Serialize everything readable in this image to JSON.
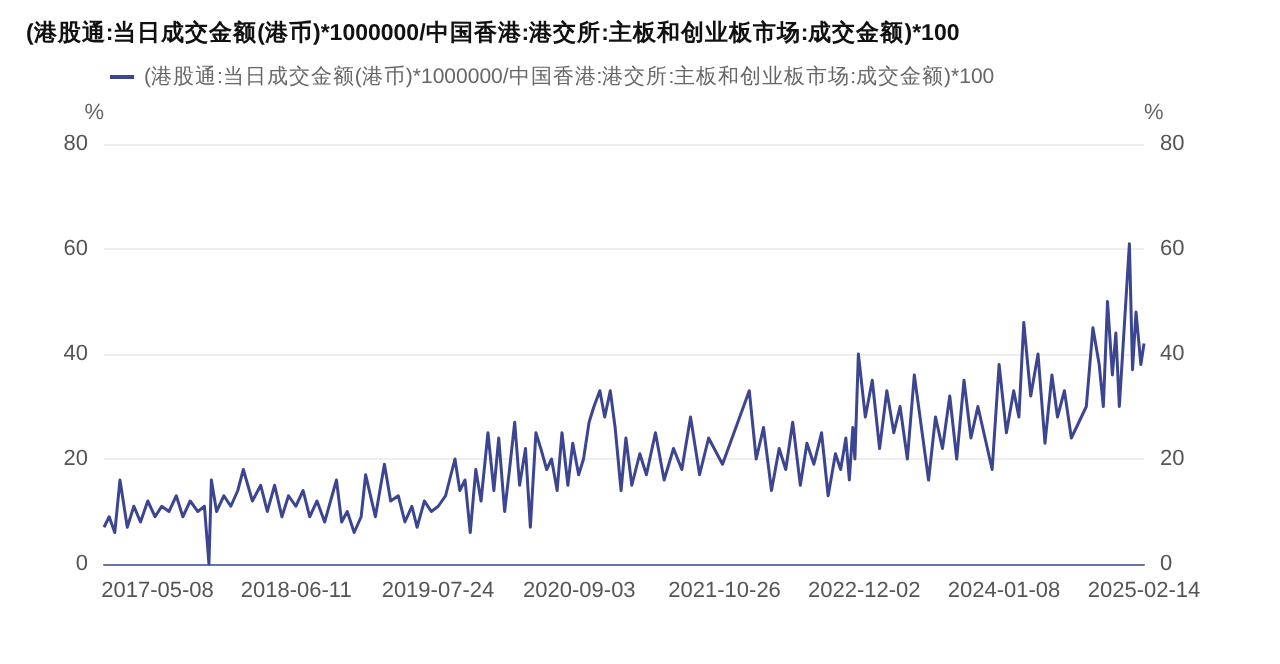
{
  "chart_data": {
    "type": "line",
    "title": "(港股通:当日成交金额(港币)*1000000/中国香港:港交所:主板和创业板市场:成交金额)*100",
    "ylabel": "%",
    "y2label": "%",
    "legend": "top left",
    "grid": "y",
    "marker": "none",
    "line_style": "solid",
    "xlim": [
      "2016-12-05",
      "2025-02-14"
    ],
    "xticks": [
      "2017-05-08",
      "2018-06-11",
      "2019-07-24",
      "2020-09-03",
      "2021-10-26",
      "2022-12-02",
      "2024-01-08",
      "2025-02-14"
    ],
    "ylim": [
      0,
      80
    ],
    "yticks": [
      0,
      20,
      40,
      60,
      80
    ],
    "y2lim": [
      0,
      80
    ],
    "y2ticks": [
      0,
      20,
      40,
      60,
      80
    ],
    "x": [
      "2016-12-05",
      "2016-12-20",
      "2017-01-05",
      "2017-01-20",
      "2017-02-10",
      "2017-03-01",
      "2017-03-20",
      "2017-04-10",
      "2017-05-01",
      "2017-05-20",
      "2017-06-10",
      "2017-07-01",
      "2017-07-20",
      "2017-08-10",
      "2017-09-01",
      "2017-09-20",
      "2017-10-03",
      "2017-10-10",
      "2017-10-25",
      "2017-11-15",
      "2017-12-05",
      "2017-12-25",
      "2018-01-10",
      "2018-02-05",
      "2018-03-01",
      "2018-03-20",
      "2018-04-10",
      "2018-05-01",
      "2018-05-20",
      "2018-06-10",
      "2018-07-01",
      "2018-07-20",
      "2018-08-10",
      "2018-09-01",
      "2018-10-05",
      "2018-10-20",
      "2018-11-05",
      "2018-11-25",
      "2018-12-15",
      "2018-12-28",
      "2019-01-25",
      "2019-02-20",
      "2019-03-10",
      "2019-04-01",
      "2019-04-20",
      "2019-05-10",
      "2019-05-25",
      "2019-06-15",
      "2019-07-05",
      "2019-07-25",
      "2019-08-15",
      "2019-09-11",
      "2019-09-25",
      "2019-10-10",
      "2019-10-25",
      "2019-11-10",
      "2019-11-25",
      "2019-12-15",
      "2020-01-01",
      "2020-01-15",
      "2020-02-01",
      "2020-02-15",
      "2020-03-01",
      "2020-03-15",
      "2020-04-01",
      "2020-04-15",
      "2020-05-01",
      "2020-05-15",
      "2020-06-01",
      "2020-06-15",
      "2020-07-01",
      "2020-07-15",
      "2020-08-01",
      "2020-08-15",
      "2020-09-01",
      "2020-09-15",
      "2020-10-01",
      "2020-10-15",
      "2020-11-01",
      "2020-11-15",
      "2020-12-01",
      "2020-12-15",
      "2021-01-01",
      "2021-01-15",
      "2021-02-01",
      "2021-02-24",
      "2021-03-15",
      "2021-04-10",
      "2021-05-05",
      "2021-06-01",
      "2021-06-25",
      "2021-07-20",
      "2021-08-15",
      "2021-09-10",
      "2021-10-20",
      "2022-01-05",
      "2022-01-25",
      "2022-02-15",
      "2022-03-10",
      "2022-04-01",
      "2022-04-20",
      "2022-05-10",
      "2022-06-01",
      "2022-06-20",
      "2022-07-10",
      "2022-08-01",
      "2022-08-20",
      "2022-09-10",
      "2022-09-25",
      "2022-10-10",
      "2022-10-20",
      "2022-10-30",
      "2022-11-05",
      "2022-11-15",
      "2022-12-05",
      "2022-12-25",
      "2023-01-15",
      "2023-02-05",
      "2023-02-25",
      "2023-03-15",
      "2023-04-05",
      "2023-04-25",
      "2023-06-05",
      "2023-06-25",
      "2023-07-15",
      "2023-08-05",
      "2023-08-25",
      "2023-09-15",
      "2023-10-05",
      "2023-10-25",
      "2023-12-05",
      "2023-12-25",
      "2024-01-15",
      "2024-02-05",
      "2024-02-20",
      "2024-03-05",
      "2024-03-25",
      "2024-04-15",
      "2024-05-05",
      "2024-05-25",
      "2024-06-10",
      "2024-06-30",
      "2024-07-20",
      "2024-09-01",
      "2024-09-20",
      "2024-10-08",
      "2024-10-20",
      "2024-11-01",
      "2024-11-15",
      "2024-11-25",
      "2024-12-05",
      "2025-01-03",
      "2025-01-12",
      "2025-01-22",
      "2025-02-05",
      "2025-02-14"
    ],
    "series": [
      {
        "name": "(港股通:当日成交金额(港币)*1000000/中国香港:港交所:主板和创业板市场:成交金额)*100",
        "color": "#3c4590",
        "values": [
          7,
          9,
          6,
          16,
          7,
          11,
          8,
          12,
          9,
          11,
          10,
          13,
          9,
          12,
          10,
          11,
          0,
          16,
          10,
          13,
          11,
          14,
          18,
          12,
          15,
          10,
          15,
          9,
          13,
          11,
          14,
          9,
          12,
          8,
          16,
          8,
          10,
          6,
          9,
          17,
          9,
          19,
          12,
          13,
          8,
          11,
          7,
          12,
          10,
          11,
          13,
          20,
          14,
          16,
          6,
          18,
          12,
          25,
          14,
          24,
          10,
          18,
          27,
          15,
          22,
          7,
          25,
          22,
          18,
          20,
          14,
          25,
          15,
          23,
          17,
          20,
          27,
          30,
          33,
          28,
          33,
          26,
          14,
          24,
          15,
          21,
          17,
          25,
          16,
          22,
          18,
          28,
          17,
          24,
          19,
          33,
          20,
          26,
          14,
          22,
          18,
          27,
          15,
          23,
          19,
          25,
          13,
          21,
          18,
          24,
          16,
          26,
          20,
          40,
          28,
          35,
          22,
          33,
          25,
          30,
          20,
          36,
          16,
          28,
          22,
          32,
          20,
          35,
          24,
          30,
          18,
          38,
          25,
          33,
          28,
          46,
          32,
          40,
          23,
          36,
          28,
          33,
          24,
          30,
          45,
          38,
          30,
          50,
          36,
          44,
          30,
          61,
          37,
          48,
          38,
          42
        ]
      }
    ]
  }
}
